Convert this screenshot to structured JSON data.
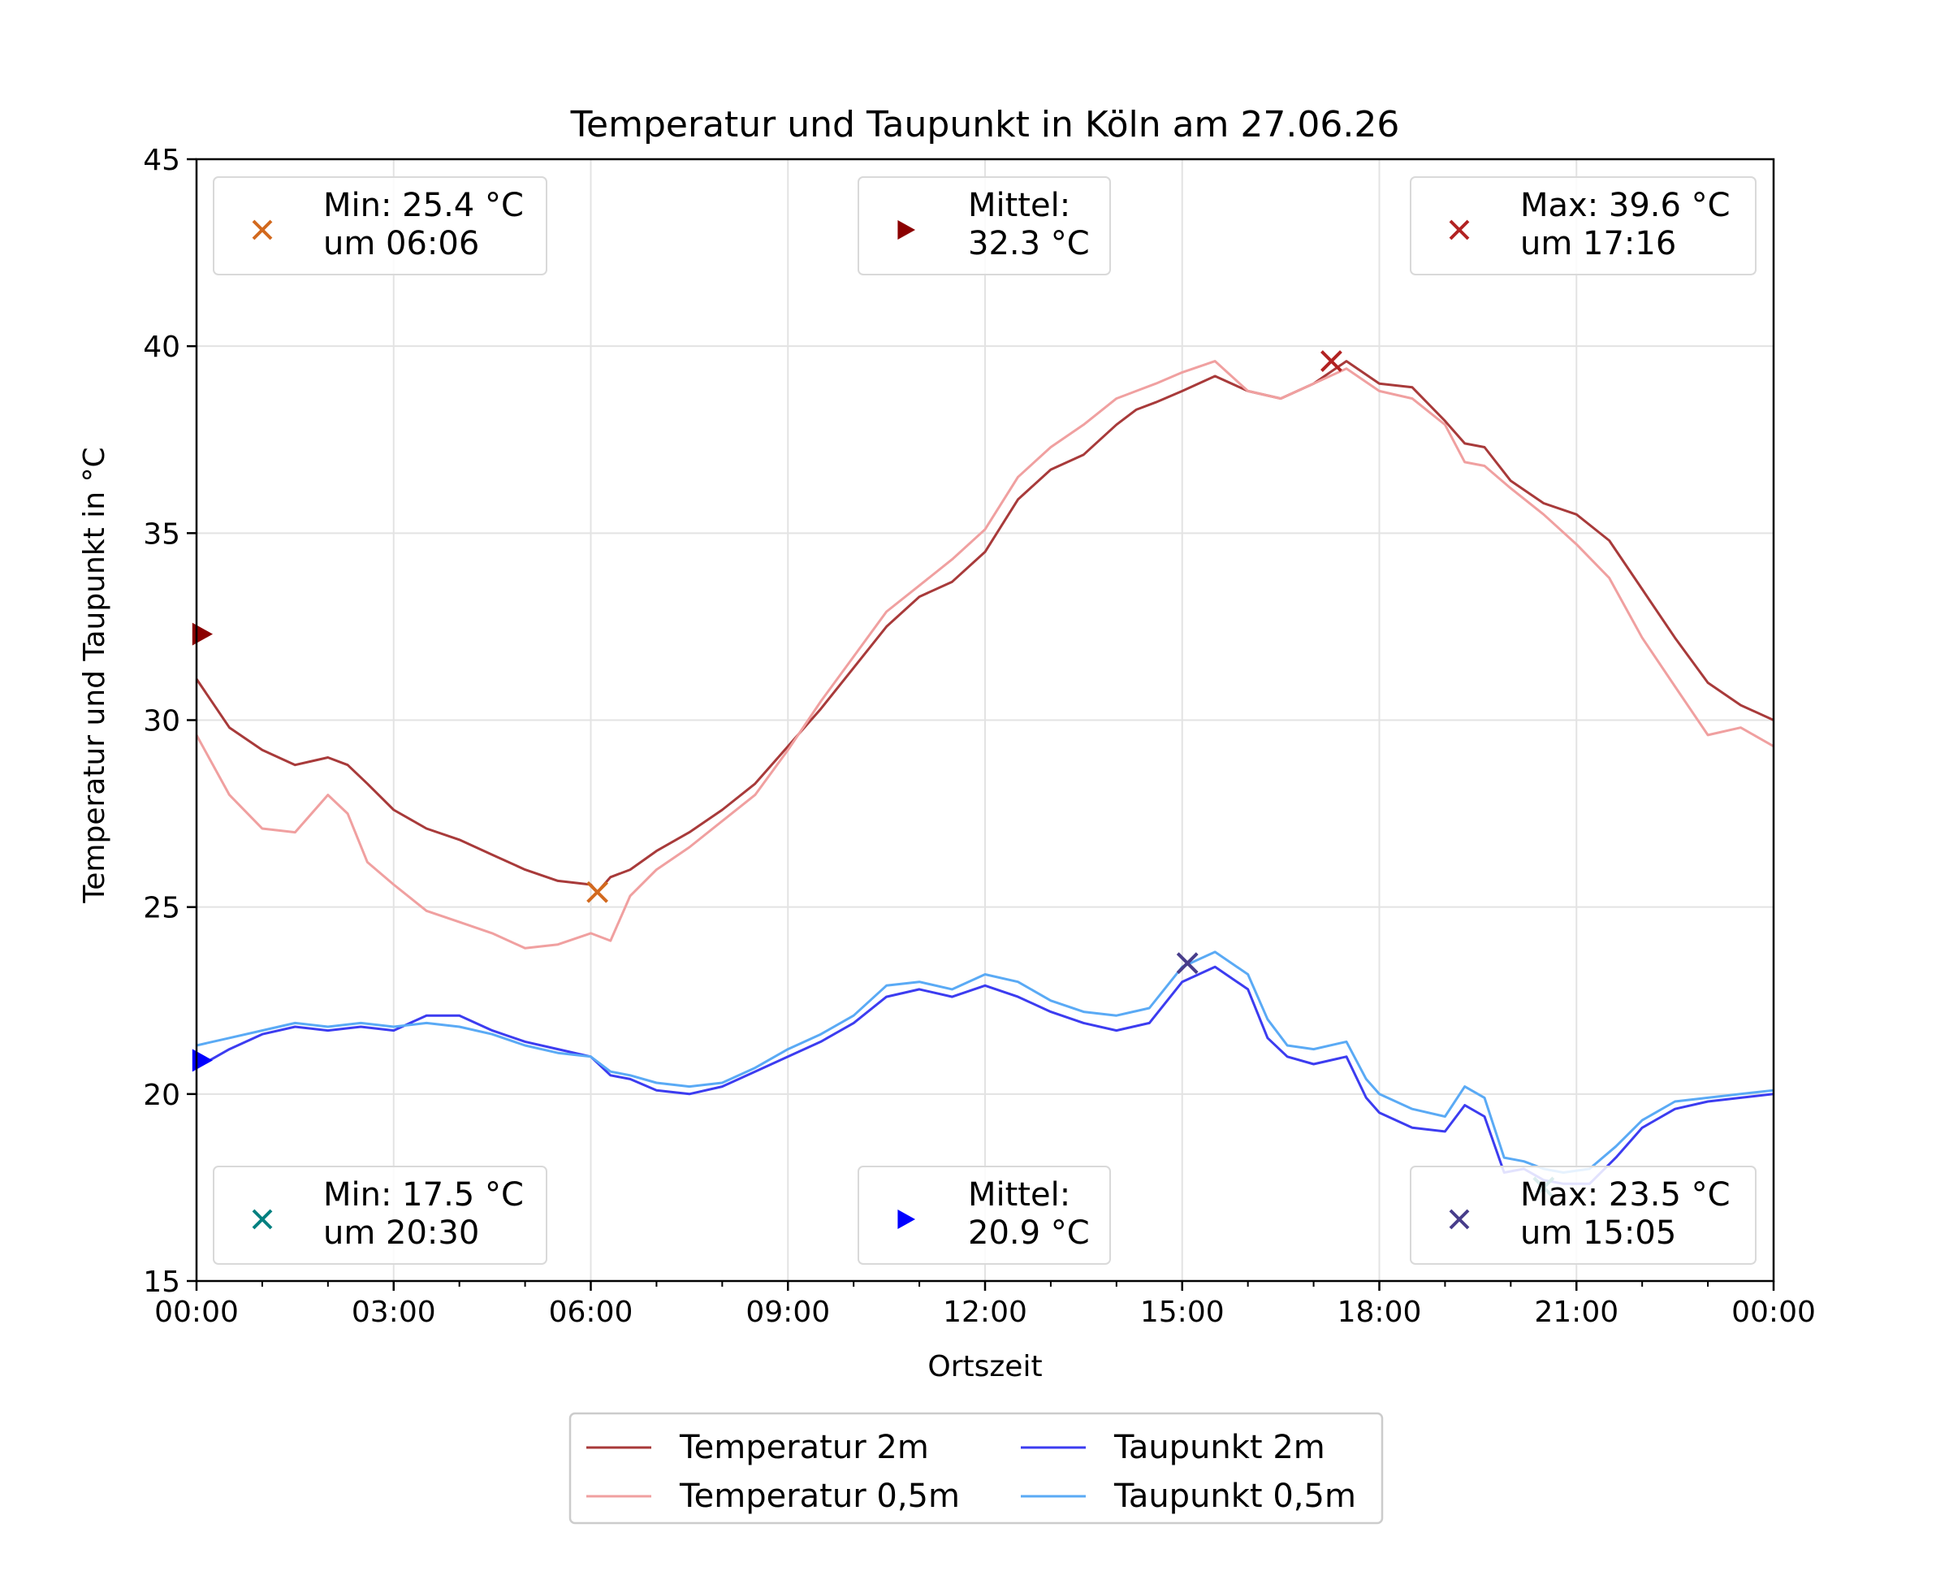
{
  "chart_data": {
    "type": "line",
    "title": "Temperatur und Taupunkt in Köln am 27.06.26",
    "xlabel": "Ortszeit",
    "ylabel": "Temperatur und Taupunkt in °C",
    "xlim": [
      0,
      24
    ],
    "ylim": [
      15,
      45
    ],
    "x_unit": "hours",
    "x_ticks": [
      0,
      3,
      6,
      9,
      12,
      15,
      18,
      21,
      24
    ],
    "x_tick_labels": [
      "00:00",
      "03:00",
      "06:00",
      "09:00",
      "12:00",
      "15:00",
      "18:00",
      "21:00",
      "00:00"
    ],
    "y_ticks": [
      15,
      20,
      25,
      30,
      35,
      40,
      45
    ],
    "y_tick_labels": [
      "15",
      "20",
      "25",
      "30",
      "35",
      "40",
      "45"
    ],
    "grid": true,
    "legend": {
      "position": "bottom-center",
      "columns": 2
    },
    "series": [
      {
        "name": "Temperatur 2m",
        "color": "#a83a3a",
        "x": [
          0,
          0.5,
          1,
          1.5,
          2,
          2.3,
          2.6,
          3,
          3.5,
          4,
          4.5,
          5,
          5.5,
          6,
          6.1,
          6.3,
          6.6,
          7,
          7.5,
          8,
          8.5,
          9,
          9.5,
          10,
          10.5,
          11,
          11.5,
          12,
          12.5,
          13,
          13.5,
          14,
          14.3,
          14.6,
          15,
          15.5,
          16,
          16.5,
          17,
          17.5,
          18,
          18.5,
          19,
          19.3,
          19.6,
          20,
          20.5,
          21,
          21.5,
          22,
          22.5,
          23,
          23.5,
          24
        ],
        "y": [
          31.1,
          29.8,
          29.2,
          28.8,
          29.0,
          28.8,
          28.3,
          27.6,
          27.1,
          26.8,
          26.4,
          26.0,
          25.7,
          25.6,
          25.4,
          25.8,
          26.0,
          26.5,
          27.0,
          27.6,
          28.3,
          29.3,
          30.3,
          31.4,
          32.5,
          33.3,
          33.7,
          34.5,
          35.9,
          36.7,
          37.1,
          37.9,
          38.3,
          38.5,
          38.8,
          39.2,
          38.8,
          38.6,
          39.0,
          39.6,
          39.0,
          38.9,
          38.0,
          37.4,
          37.3,
          36.4,
          35.8,
          35.5,
          34.8,
          33.5,
          32.2,
          31.0,
          30.4,
          30.0
        ]
      },
      {
        "name": "Temperatur 0,5m",
        "color": "#f0a0a0",
        "x": [
          0,
          0.5,
          1,
          1.5,
          2,
          2.3,
          2.6,
          3,
          3.5,
          4,
          4.5,
          5,
          5.5,
          6,
          6.3,
          6.6,
          7,
          7.5,
          8,
          8.5,
          9,
          9.5,
          10,
          10.5,
          11,
          11.5,
          12,
          12.5,
          13,
          13.5,
          14,
          14.3,
          14.6,
          15,
          15.5,
          16,
          16.5,
          17,
          17.5,
          18,
          18.5,
          19,
          19.3,
          19.6,
          20,
          20.5,
          21,
          21.5,
          22,
          22.5,
          23,
          23.5,
          24
        ],
        "y": [
          29.6,
          28.0,
          27.1,
          27.0,
          28.0,
          27.5,
          26.2,
          25.6,
          24.9,
          24.6,
          24.3,
          23.9,
          24.0,
          24.3,
          24.1,
          25.3,
          26.0,
          26.6,
          27.3,
          28.0,
          29.2,
          30.5,
          31.7,
          32.9,
          33.6,
          34.3,
          35.1,
          36.5,
          37.3,
          37.9,
          38.6,
          38.8,
          39.0,
          39.3,
          39.6,
          38.8,
          38.6,
          39.0,
          39.4,
          38.8,
          38.6,
          37.9,
          36.9,
          36.8,
          36.2,
          35.5,
          34.7,
          33.8,
          32.2,
          30.9,
          29.6,
          29.8,
          29.3
        ]
      },
      {
        "name": "Taupunkt 2m",
        "color": "#3c3cf0",
        "x": [
          0,
          0.5,
          1,
          1.5,
          2,
          2.5,
          3,
          3.5,
          4,
          4.5,
          5,
          5.5,
          6,
          6.3,
          6.6,
          7,
          7.5,
          8,
          8.5,
          9,
          9.5,
          10,
          10.5,
          11,
          11.5,
          12,
          12.5,
          13,
          13.5,
          14,
          14.5,
          15,
          15.5,
          16,
          16.3,
          16.6,
          17,
          17.5,
          17.8,
          18,
          18.5,
          19,
          19.3,
          19.6,
          19.9,
          20.2,
          20.5,
          20.8,
          21.2,
          21.6,
          22,
          22.5,
          23,
          23.5,
          24
        ],
        "y": [
          20.7,
          21.2,
          21.6,
          21.8,
          21.7,
          21.8,
          21.7,
          22.1,
          22.1,
          21.7,
          21.4,
          21.2,
          21.0,
          20.5,
          20.4,
          20.1,
          20.0,
          20.2,
          20.6,
          21.0,
          21.4,
          21.9,
          22.6,
          22.8,
          22.6,
          22.9,
          22.6,
          22.2,
          21.9,
          21.7,
          21.9,
          23.0,
          23.4,
          22.8,
          21.5,
          21.0,
          20.8,
          21.0,
          19.9,
          19.5,
          19.1,
          19.0,
          19.7,
          19.4,
          17.9,
          18.0,
          17.7,
          17.6,
          17.6,
          18.3,
          19.1,
          19.6,
          19.8,
          19.9,
          20.0
        ]
      },
      {
        "name": "Taupunkt 0,5m",
        "color": "#5aaaf5",
        "x": [
          0,
          0.5,
          1,
          1.5,
          2,
          2.5,
          3,
          3.5,
          4,
          4.5,
          5,
          5.5,
          6,
          6.3,
          6.6,
          7,
          7.5,
          8,
          8.5,
          9,
          9.5,
          10,
          10.5,
          11,
          11.5,
          12,
          12.5,
          13,
          13.5,
          14,
          14.5,
          15,
          15.5,
          16,
          16.3,
          16.6,
          17,
          17.5,
          17.8,
          18,
          18.5,
          19,
          19.3,
          19.6,
          19.9,
          20.2,
          20.5,
          20.8,
          21.2,
          21.6,
          22,
          22.5,
          23,
          23.5,
          24
        ],
        "y": [
          21.3,
          21.5,
          21.7,
          21.9,
          21.8,
          21.9,
          21.8,
          21.9,
          21.8,
          21.6,
          21.3,
          21.1,
          21.0,
          20.6,
          20.5,
          20.3,
          20.2,
          20.3,
          20.7,
          21.2,
          21.6,
          22.1,
          22.9,
          23.0,
          22.8,
          23.2,
          23.0,
          22.5,
          22.2,
          22.1,
          22.3,
          23.4,
          23.8,
          23.2,
          22.0,
          21.3,
          21.2,
          21.4,
          20.4,
          20.0,
          19.6,
          19.4,
          20.2,
          19.9,
          18.3,
          18.2,
          18.0,
          17.9,
          18.0,
          18.6,
          19.3,
          19.8,
          19.9,
          20.0,
          20.1
        ]
      }
    ],
    "markers": [
      {
        "kind": "x",
        "series": "Temperatur 2m",
        "x": 6.1,
        "y": 25.4,
        "color": "#d2691e"
      },
      {
        "kind": "x",
        "series": "Temperatur 2m",
        "x": 17.27,
        "y": 39.6,
        "color": "#b22222"
      },
      {
        "kind": "triangle",
        "series": "Temperatur 2m",
        "x": 0,
        "y": 32.3,
        "color": "#8b0000"
      },
      {
        "kind": "x",
        "series": "Taupunkt 2m",
        "x": 20.5,
        "y": 17.5,
        "color": "#008080"
      },
      {
        "kind": "x",
        "series": "Taupunkt 2m",
        "x": 15.08,
        "y": 23.5,
        "color": "#483d8b"
      },
      {
        "kind": "triangle",
        "series": "Taupunkt 2m",
        "x": 0,
        "y": 20.9,
        "color": "#0000ff"
      }
    ],
    "annotation_boxes": [
      {
        "position": "top-left",
        "marker": "x",
        "color": "#d2691e",
        "line1": "Min: 25.4 °C",
        "line2": "um 06:06"
      },
      {
        "position": "top-center",
        "marker": "triangle",
        "color": "#8b0000",
        "line1": "Mittel:",
        "line2": "32.3 °C"
      },
      {
        "position": "top-right",
        "marker": "x",
        "color": "#b22222",
        "line1": "Max: 39.6 °C",
        "line2": "um 17:16"
      },
      {
        "position": "bottom-left",
        "marker": "x",
        "color": "#008080",
        "line1": "Min: 17.5 °C",
        "line2": "um 20:30"
      },
      {
        "position": "bottom-center",
        "marker": "triangle",
        "color": "#0000ff",
        "line1": "Mittel:",
        "line2": "20.9 °C"
      },
      {
        "position": "bottom-right",
        "marker": "x",
        "color": "#483d8b",
        "line1": "Max: 23.5 °C",
        "line2": "um 15:05"
      }
    ]
  }
}
